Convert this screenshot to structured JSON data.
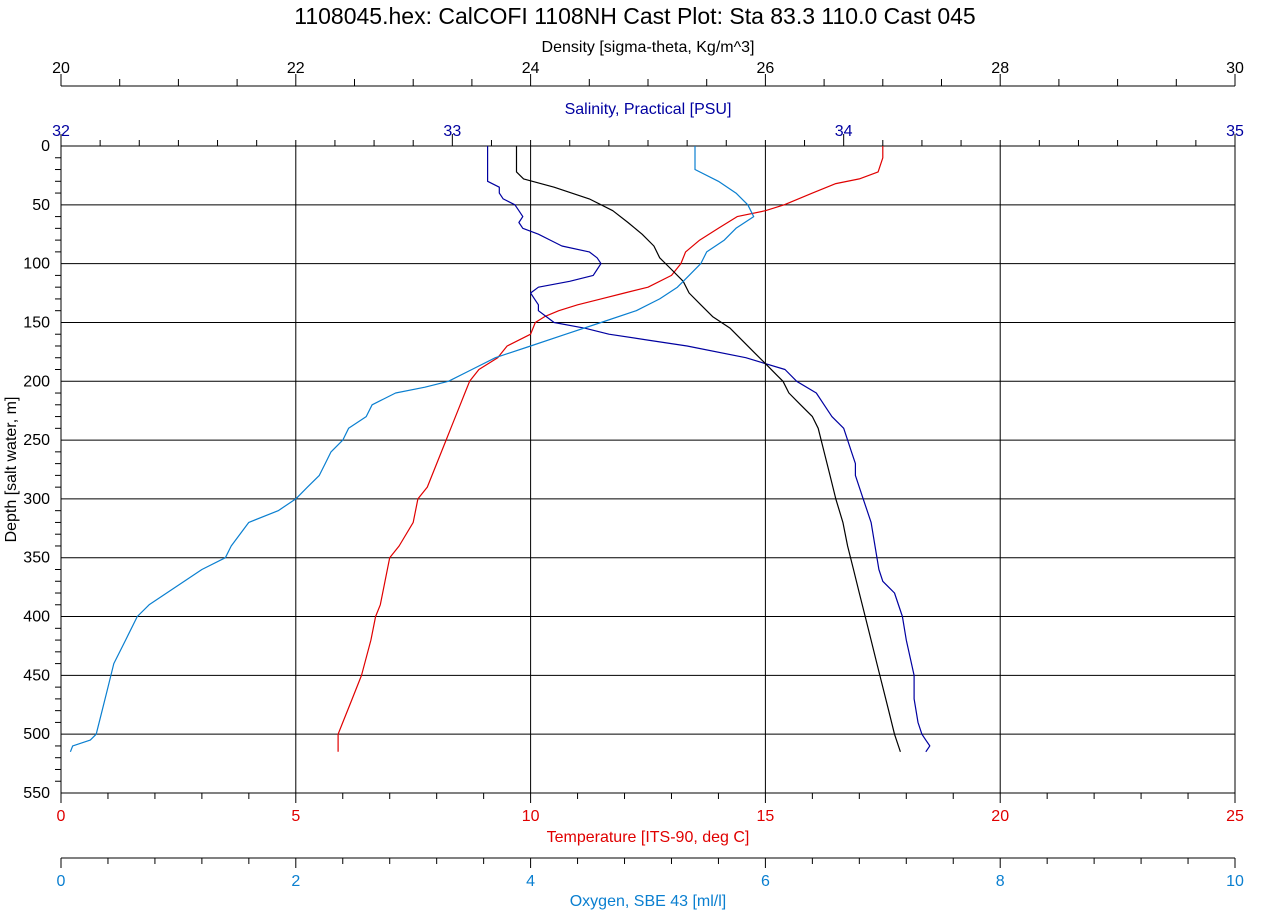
{
  "chart_data": {
    "type": "line",
    "title": "1108045.hex: CalCOFI 1108NH Cast Plot: Sta 83.3  110.0  Cast 045",
    "ylabel": "Depth [salt water, m]",
    "ylim": [
      0,
      550
    ],
    "y_ticks": [
      "0",
      "50",
      "100",
      "150",
      "200",
      "250",
      "300",
      "350",
      "400",
      "450",
      "500",
      "550"
    ],
    "y_inverted": true,
    "grid": true,
    "axes": {
      "density": {
        "label": "Density [sigma-theta, Kg/m^3]",
        "range": [
          20,
          30
        ],
        "ticks": [
          "20",
          "22",
          "24",
          "26",
          "28",
          "30"
        ],
        "color": "#000000",
        "position": "top"
      },
      "salinity": {
        "label": "Salinity, Practical [PSU]",
        "range": [
          32,
          35
        ],
        "ticks": [
          "32",
          "33",
          "34",
          "35"
        ],
        "color": "#0000a0",
        "position": "top"
      },
      "temperature": {
        "label": "Temperature [ITS-90, deg C]",
        "range": [
          0,
          25
        ],
        "ticks": [
          "0",
          "5",
          "10",
          "15",
          "20",
          "25"
        ],
        "color": "#e00000",
        "position": "bottom"
      },
      "oxygen": {
        "label": "Oxygen, SBE 43 [ml/l]",
        "range": [
          0,
          10
        ],
        "ticks": [
          "0",
          "2",
          "4",
          "6",
          "8",
          "10"
        ],
        "color": "#0a7fd0",
        "position": "bottom"
      }
    },
    "series": [
      {
        "name": "Temperature [ITS-90, deg C]",
        "axis": "temperature",
        "color": "#e00000",
        "depth": [
          0,
          10,
          22,
          28,
          32,
          40,
          50,
          55,
          60,
          70,
          80,
          90,
          100,
          110,
          120,
          125,
          130,
          135,
          140,
          145,
          150,
          160,
          170,
          180,
          190,
          200,
          210,
          220,
          240,
          250,
          270,
          290,
          300,
          320,
          340,
          350,
          370,
          390,
          400,
          420,
          450,
          470,
          490,
          500,
          510,
          515
        ],
        "values": [
          17.5,
          17.5,
          17.4,
          17.0,
          16.5,
          16.0,
          15.4,
          15.0,
          14.4,
          14.0,
          13.6,
          13.3,
          13.2,
          13.0,
          12.5,
          12.0,
          11.5,
          11.0,
          10.6,
          10.3,
          10.1,
          10.0,
          9.5,
          9.3,
          8.9,
          8.7,
          8.6,
          8.5,
          8.3,
          8.2,
          8.0,
          7.8,
          7.6,
          7.5,
          7.2,
          7.0,
          6.9,
          6.8,
          6.7,
          6.6,
          6.4,
          6.2,
          6.0,
          5.9,
          5.9,
          5.9
        ]
      },
      {
        "name": "Salinity, Practical [PSU]",
        "axis": "salinity",
        "color": "#0000a0",
        "depth": [
          0,
          20,
          30,
          35,
          40,
          45,
          50,
          55,
          60,
          65,
          70,
          75,
          80,
          85,
          90,
          95,
          100,
          105,
          110,
          115,
          120,
          125,
          130,
          135,
          140,
          145,
          150,
          155,
          160,
          165,
          170,
          180,
          190,
          200,
          210,
          220,
          230,
          240,
          250,
          260,
          270,
          280,
          300,
          320,
          340,
          360,
          370,
          380,
          400,
          420,
          450,
          470,
          490,
          500,
          505,
          510,
          515
        ],
        "values": [
          33.09,
          33.09,
          33.09,
          33.12,
          33.12,
          33.13,
          33.16,
          33.17,
          33.18,
          33.17,
          33.18,
          33.22,
          33.25,
          33.28,
          33.35,
          33.37,
          33.38,
          33.37,
          33.36,
          33.3,
          33.22,
          33.2,
          33.21,
          33.22,
          33.22,
          33.24,
          33.26,
          33.34,
          33.4,
          33.5,
          33.6,
          33.75,
          33.85,
          33.88,
          33.93,
          33.95,
          33.97,
          34.0,
          34.01,
          34.02,
          34.03,
          34.03,
          34.05,
          34.07,
          34.08,
          34.09,
          34.1,
          34.13,
          34.15,
          34.16,
          34.18,
          34.18,
          34.19,
          34.2,
          34.21,
          34.22,
          34.21
        ]
      },
      {
        "name": "Density [sigma-theta, Kg/m^3]",
        "axis": "density",
        "color": "#000000",
        "depth": [
          0,
          22,
          28,
          35,
          45,
          55,
          65,
          75,
          85,
          95,
          105,
          115,
          125,
          135,
          145,
          155,
          165,
          175,
          185,
          195,
          200,
          210,
          220,
          230,
          240,
          260,
          280,
          300,
          320,
          340,
          360,
          380,
          400,
          420,
          440,
          460,
          480,
          500,
          515
        ],
        "values": [
          23.88,
          23.88,
          23.94,
          24.2,
          24.5,
          24.7,
          24.83,
          24.95,
          25.05,
          25.1,
          25.2,
          25.3,
          25.35,
          25.45,
          25.55,
          25.7,
          25.8,
          25.9,
          26.0,
          26.1,
          26.15,
          26.2,
          26.3,
          26.4,
          26.45,
          26.5,
          26.55,
          26.6,
          26.66,
          26.7,
          26.75,
          26.8,
          26.85,
          26.9,
          26.95,
          27.0,
          27.05,
          27.1,
          27.15
        ]
      },
      {
        "name": "Oxygen, SBE 43 [ml/l]",
        "axis": "oxygen",
        "color": "#0a7fd0",
        "depth": [
          0,
          20,
          30,
          40,
          50,
          60,
          70,
          80,
          90,
          100,
          110,
          120,
          130,
          140,
          150,
          160,
          170,
          180,
          190,
          200,
          205,
          210,
          215,
          220,
          230,
          240,
          250,
          260,
          270,
          280,
          290,
          300,
          310,
          320,
          340,
          350,
          360,
          370,
          380,
          390,
          400,
          420,
          440,
          460,
          480,
          500,
          505,
          510,
          515
        ],
        "values": [
          5.4,
          5.4,
          5.6,
          5.75,
          5.85,
          5.9,
          5.75,
          5.65,
          5.5,
          5.45,
          5.35,
          5.25,
          5.1,
          4.9,
          4.6,
          4.3,
          4.0,
          3.7,
          3.5,
          3.3,
          3.1,
          2.85,
          2.75,
          2.65,
          2.6,
          2.45,
          2.4,
          2.3,
          2.25,
          2.2,
          2.1,
          2.0,
          1.85,
          1.6,
          1.45,
          1.4,
          1.2,
          1.05,
          0.9,
          0.75,
          0.65,
          0.55,
          0.45,
          0.4,
          0.35,
          0.3,
          0.25,
          0.1,
          0.08
        ]
      }
    ]
  }
}
